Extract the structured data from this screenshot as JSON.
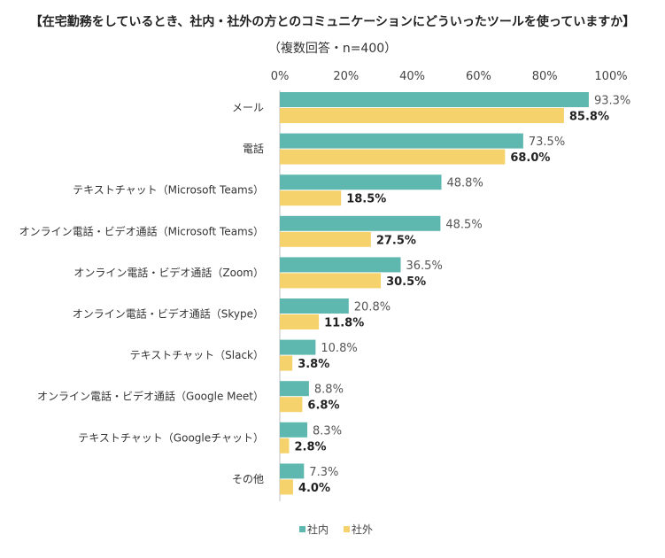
{
  "chart_data": {
    "type": "bar",
    "orientation": "horizontal",
    "title": "【在宅勤務をしているとき、社内・社外の方とのコミュニケーションにどういったツールを使っていますか】",
    "subtitle": "（複数回答・n=400）",
    "categories": [
      "メール",
      "電話",
      "テキストチャット（Microsoft Teams）",
      "オンライン電話・ビデオ通話（Microsoft Teams）",
      "オンライン電話・ビデオ通話（Zoom）",
      "オンライン電話・ビデオ通話（Skype）",
      "テキストチャット（Slack）",
      "オンライン電話・ビデオ通話（Google Meet）",
      "テキストチャット（Googleチャット）",
      "その他"
    ],
    "series": [
      {
        "name": "社内",
        "color": "#5fb8b0",
        "values": [
          93.3,
          73.5,
          48.8,
          48.5,
          36.5,
          20.8,
          10.8,
          8.8,
          8.3,
          7.3
        ],
        "labels": [
          "93.3%",
          "73.5%",
          "48.8%",
          "48.5%",
          "36.5%",
          "20.8%",
          "10.8%",
          "8.8%",
          "8.3%",
          "7.3%"
        ]
      },
      {
        "name": "社外",
        "color": "#f5d26b",
        "values": [
          85.8,
          68.0,
          18.5,
          27.5,
          30.5,
          11.8,
          3.8,
          6.8,
          2.8,
          4.0
        ],
        "labels": [
          "85.8%",
          "68.0%",
          "18.5%",
          "27.5%",
          "30.5%",
          "11.8%",
          "3.8%",
          "6.8%",
          "2.8%",
          "4.0%"
        ]
      }
    ],
    "xlim": [
      0,
      100
    ],
    "xticks": [
      0,
      20,
      40,
      60,
      80,
      100
    ],
    "xtick_labels": [
      "0%",
      "20%",
      "40%",
      "60%",
      "80%",
      "100%"
    ],
    "axis_position": "top",
    "grid": false,
    "legend_position": "bottom"
  }
}
